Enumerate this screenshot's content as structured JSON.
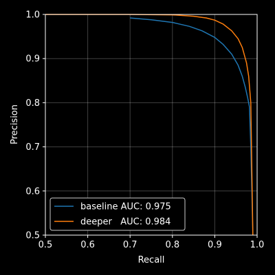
{
  "chart_data": {
    "type": "line",
    "title": "",
    "xlabel": "Recall",
    "ylabel": "Precision",
    "xlim": [
      0.5,
      1.0
    ],
    "ylim": [
      0.5,
      1.0
    ],
    "xticks": [
      "0.5",
      "0.6",
      "0.7",
      "0.8",
      "0.9",
      "1.0"
    ],
    "yticks": [
      "0.5",
      "0.6",
      "0.7",
      "0.8",
      "0.9",
      "1.0"
    ],
    "grid": true,
    "legend_position": "lower-left",
    "series": [
      {
        "name": "baseline AUC: 0.975",
        "color": "#1f77b4",
        "x": [
          0.7,
          0.75,
          0.8,
          0.84,
          0.87,
          0.9,
          0.92,
          0.94,
          0.955,
          0.965,
          0.972,
          0.978,
          0.982,
          0.985,
          0.99
        ],
        "y": [
          0.992,
          0.988,
          0.982,
          0.973,
          0.963,
          0.948,
          0.932,
          0.91,
          0.885,
          0.86,
          0.835,
          0.81,
          0.79,
          0.7,
          0.5
        ]
      },
      {
        "name": "deeper   AUC: 0.984",
        "color": "#ff7f0e",
        "x": [
          0.5,
          0.6,
          0.7,
          0.8,
          0.85,
          0.88,
          0.9,
          0.92,
          0.94,
          0.955,
          0.965,
          0.975,
          0.98,
          0.985,
          0.99
        ],
        "y": [
          1.0,
          1.0,
          1.0,
          0.999,
          0.996,
          0.992,
          0.987,
          0.978,
          0.963,
          0.945,
          0.925,
          0.89,
          0.86,
          0.8,
          0.5
        ]
      }
    ]
  }
}
